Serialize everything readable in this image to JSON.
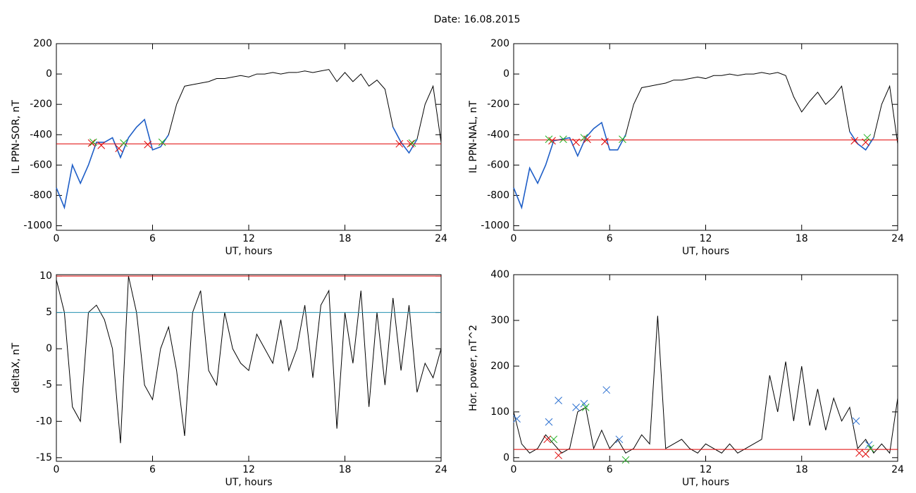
{
  "title": "Date:  16.08.2015",
  "chart_data": [
    {
      "type": "line",
      "xlabel": "UT, hours",
      "ylabel": "IL PPN-SOR, nT",
      "x": [
        0,
        0.5,
        1,
        1.5,
        2,
        2.5,
        3,
        3.5,
        4,
        4.5,
        5,
        5.5,
        6,
        6.5,
        7,
        7.5,
        8,
        8.5,
        9,
        9.5,
        10,
        10.5,
        11,
        11.5,
        12,
        12.5,
        13,
        13.5,
        14,
        14.5,
        15,
        15.5,
        16,
        16.5,
        17,
        17.5,
        18,
        18.5,
        19,
        19.5,
        20,
        20.5,
        21,
        21.5,
        22,
        22.5,
        23,
        23.5,
        24
      ],
      "xlim": [
        0,
        24
      ],
      "xticks": [
        0,
        6,
        12,
        18,
        24
      ],
      "ylim": [
        -1030,
        200
      ],
      "yticks": [
        -1000,
        -800,
        -600,
        -400,
        -200,
        0,
        200
      ],
      "series": [
        {
          "color": "#000000",
          "values": [
            -750,
            -880,
            -600,
            -720,
            -600,
            -450,
            -450,
            -420,
            -550,
            -420,
            -350,
            -300,
            -500,
            -480,
            -400,
            -200,
            -80,
            -70,
            -60,
            -50,
            -30,
            -30,
            -20,
            -10,
            -20,
            0,
            0,
            10,
            0,
            10,
            10,
            20,
            10,
            20,
            30,
            -50,
            10,
            -50,
            0,
            -80,
            -40,
            -100,
            -350,
            -450,
            -520,
            -430,
            -200,
            -80,
            -450
          ]
        },
        {
          "color": "#1f5fc8",
          "values": [
            -750,
            -880,
            -600,
            -720,
            -600,
            -450,
            -450,
            -420,
            -550,
            -420,
            -350,
            -300,
            -500,
            -480,
            -400,
            null,
            null,
            null,
            null,
            null,
            null,
            null,
            null,
            null,
            null,
            null,
            null,
            null,
            null,
            null,
            null,
            null,
            null,
            null,
            null,
            null,
            null,
            null,
            null,
            null,
            null,
            null,
            -350,
            -450,
            -520,
            -430,
            null,
            null,
            null
          ]
        }
      ],
      "hlines": [
        {
          "value": -460,
          "color": "#e00000"
        }
      ],
      "markers": [
        {
          "color": "#e00000",
          "x": [
            2.2,
            2.8,
            3.9,
            5.7,
            21.4,
            22.1
          ],
          "y": [
            -455,
            -470,
            -490,
            -465,
            -460,
            -460
          ]
        },
        {
          "color": "#20b020",
          "x": [
            2.3,
            4.2,
            6.6,
            22.2
          ],
          "y": [
            -450,
            -455,
            -450,
            -455
          ]
        }
      ]
    },
    {
      "type": "line",
      "xlabel": "UT, hours",
      "ylabel": "IL PPN-NAL, nT",
      "x": [
        0,
        0.5,
        1,
        1.5,
        2,
        2.5,
        3,
        3.5,
        4,
        4.5,
        5,
        5.5,
        6,
        6.5,
        7,
        7.5,
        8,
        8.5,
        9,
        9.5,
        10,
        10.5,
        11,
        11.5,
        12,
        12.5,
        13,
        13.5,
        14,
        14.5,
        15,
        15.5,
        16,
        16.5,
        17,
        17.5,
        18,
        18.5,
        19,
        19.5,
        20,
        20.5,
        21,
        21.5,
        22,
        22.5,
        23,
        23.5,
        24
      ],
      "xlim": [
        0,
        24
      ],
      "xticks": [
        0,
        6,
        12,
        18,
        24
      ],
      "ylim": [
        -1030,
        200
      ],
      "yticks": [
        -1000,
        -800,
        -600,
        -400,
        -200,
        0,
        200
      ],
      "series": [
        {
          "color": "#000000",
          "values": [
            -750,
            -880,
            -620,
            -720,
            -600,
            -440,
            -430,
            -420,
            -540,
            -420,
            -360,
            -320,
            -500,
            -500,
            -400,
            -200,
            -90,
            -80,
            -70,
            -60,
            -40,
            -40,
            -30,
            -20,
            -30,
            -10,
            -10,
            0,
            -10,
            0,
            0,
            10,
            0,
            10,
            -10,
            -150,
            -250,
            -180,
            -120,
            -200,
            -150,
            -80,
            -380,
            -460,
            -500,
            -420,
            -200,
            -80,
            -460
          ]
        },
        {
          "color": "#1f5fc8",
          "values": [
            -750,
            -880,
            -620,
            -720,
            -600,
            -440,
            -430,
            -420,
            -540,
            -420,
            -360,
            -320,
            -500,
            -500,
            -400,
            null,
            null,
            null,
            null,
            null,
            null,
            null,
            null,
            null,
            null,
            null,
            null,
            null,
            null,
            null,
            null,
            null,
            null,
            null,
            null,
            null,
            null,
            null,
            null,
            null,
            null,
            null,
            -380,
            -460,
            -500,
            -420,
            null,
            null,
            null
          ]
        }
      ],
      "hlines": [
        {
          "value": -435,
          "color": "#e00000"
        }
      ],
      "markers": [
        {
          "color": "#e00000",
          "x": [
            2.4,
            3.9,
            4.6,
            5.7,
            21.3,
            22
          ],
          "y": [
            -440,
            -450,
            -430,
            -445,
            -440,
            -450
          ]
        },
        {
          "color": "#20b020",
          "x": [
            2.2,
            3.1,
            4.4,
            6.8,
            22.1
          ],
          "y": [
            -430,
            -430,
            -420,
            -430,
            -420
          ]
        }
      ]
    },
    {
      "type": "line",
      "xlabel": "UT, hours",
      "ylabel": "deltaX, nT",
      "x": [
        0,
        0.5,
        1,
        1.5,
        2,
        2.5,
        3,
        3.5,
        4,
        4.5,
        5,
        5.5,
        6,
        6.5,
        7,
        7.5,
        8,
        8.5,
        9,
        9.5,
        10,
        10.5,
        11,
        11.5,
        12,
        12.5,
        13,
        13.5,
        14,
        14.5,
        15,
        15.5,
        16,
        16.5,
        17,
        17.5,
        18,
        18.5,
        19,
        19.5,
        20,
        20.5,
        21,
        21.5,
        22,
        22.5,
        23,
        23.5,
        24
      ],
      "xlim": [
        0,
        24
      ],
      "xticks": [
        0,
        6,
        12,
        18,
        24
      ],
      "ylim": [
        -15.5,
        10.2
      ],
      "yticks": [
        -15,
        -10,
        -5,
        0,
        5,
        10
      ],
      "series": [
        {
          "color": "#000000",
          "values": [
            9.5,
            5,
            -8,
            -10,
            5,
            6,
            4,
            0,
            -13,
            10,
            5,
            -5,
            -7,
            0,
            3,
            -3,
            -12,
            5,
            8,
            -3,
            -5,
            5,
            0,
            -2,
            -3,
            2,
            0,
            -2,
            4,
            -3,
            0,
            6,
            -4,
            6,
            8,
            -11,
            5,
            -2,
            8,
            -8,
            5,
            -5,
            7,
            -3,
            6,
            -6,
            -2,
            -4,
            0
          ]
        }
      ],
      "hlines": [
        {
          "value": 10,
          "color": "#e00000"
        },
        {
          "value": 5,
          "color": "#2090b0"
        }
      ],
      "markers": []
    },
    {
      "type": "line",
      "xlabel": "UT, hours",
      "ylabel": "Hor. power, nT^2",
      "x": [
        0,
        0.5,
        1,
        1.5,
        2,
        2.5,
        3,
        3.5,
        4,
        4.5,
        5,
        5.5,
        6,
        6.5,
        7,
        7.5,
        8,
        8.5,
        9,
        9.5,
        10,
        10.5,
        11,
        11.5,
        12,
        12.5,
        13,
        13.5,
        14,
        14.5,
        15,
        15.5,
        16,
        16.5,
        17,
        17.5,
        18,
        18.5,
        19,
        19.5,
        20,
        20.5,
        21,
        21.5,
        22,
        22.5,
        23,
        23.5,
        24
      ],
      "xlim": [
        0,
        24
      ],
      "xticks": [
        0,
        6,
        12,
        18,
        24
      ],
      "ylim": [
        -8,
        400
      ],
      "yticks": [
        0,
        100,
        200,
        300,
        400
      ],
      "series": [
        {
          "color": "#000000",
          "values": [
            100,
            30,
            10,
            20,
            50,
            30,
            10,
            20,
            100,
            110,
            20,
            60,
            20,
            40,
            10,
            20,
            50,
            30,
            310,
            20,
            30,
            40,
            20,
            10,
            30,
            20,
            10,
            30,
            10,
            20,
            30,
            40,
            180,
            100,
            210,
            80,
            200,
            70,
            150,
            60,
            130,
            80,
            110,
            20,
            40,
            10,
            30,
            10,
            130
          ]
        }
      ],
      "hlines": [
        {
          "value": 18,
          "color": "#e00000"
        }
      ],
      "markers": [
        {
          "color": "#2a6fd0",
          "x": [
            0.2,
            2.2,
            2.8,
            3.9,
            4.4,
            5.8,
            6.6,
            21.4,
            22.2
          ],
          "y": [
            85,
            78,
            125,
            110,
            118,
            148,
            40,
            80,
            28
          ]
        },
        {
          "color": "#20b020",
          "x": [
            2.5,
            4.5,
            7,
            22.3
          ],
          "y": [
            40,
            110,
            -5,
            20
          ]
        },
        {
          "color": "#e00000",
          "x": [
            2.1,
            2.8,
            21.6,
            22
          ],
          "y": [
            40,
            5,
            10,
            8
          ]
        }
      ]
    }
  ]
}
